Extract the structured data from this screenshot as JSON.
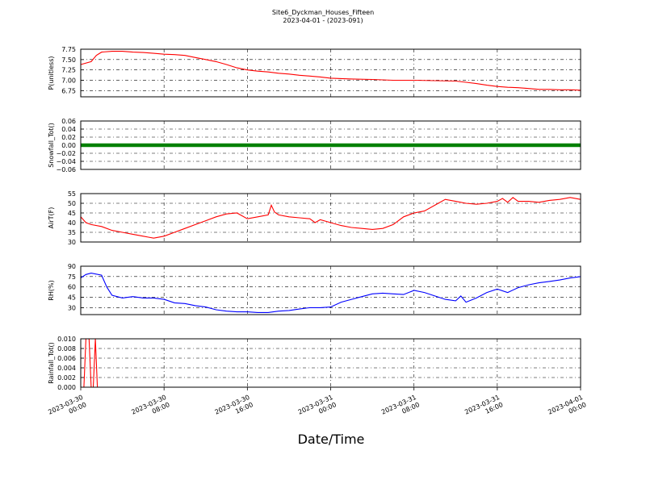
{
  "figure": {
    "title": "Site6_Dyckman_Houses_Fifteen",
    "subtitle": "2023-04-01 - (2023-091)",
    "xlabel": "Date/Time",
    "x_ticks": [
      {
        "hour": 0,
        "line1": "2023-03-30",
        "line2": "00:00"
      },
      {
        "hour": 8,
        "line1": "2023-03-30",
        "line2": "08:00"
      },
      {
        "hour": 16,
        "line1": "2023-03-30",
        "line2": "16:00"
      },
      {
        "hour": 24,
        "line1": "2023-03-31",
        "line2": "00:00"
      },
      {
        "hour": 32,
        "line1": "2023-03-31",
        "line2": "08:00"
      },
      {
        "hour": 40,
        "line1": "2023-03-31",
        "line2": "16:00"
      },
      {
        "hour": 48,
        "line1": "2023-04-01",
        "line2": "00:00"
      }
    ]
  },
  "chart_data": [
    {
      "type": "line",
      "ylabel": "P(unitless)",
      "ylim": [
        6.6,
        7.75
      ],
      "yticks": [
        "6.75",
        "7.00",
        "7.25",
        "7.50",
        "7.75"
      ],
      "ytick_values": [
        6.75,
        7.0,
        7.25,
        7.5,
        7.75
      ],
      "color": "#ff0000",
      "grid": true,
      "series": [
        {
          "x_hours": [
            0,
            1,
            1.5,
            2,
            3,
            4,
            5,
            6,
            7,
            8,
            9,
            10,
            11,
            12,
            13,
            14,
            15,
            16,
            17,
            18,
            19,
            20,
            21,
            22,
            23,
            24,
            26,
            28,
            30,
            32,
            34,
            36,
            37,
            38,
            39,
            40,
            41,
            42,
            43,
            44,
            45,
            46,
            47,
            48
          ],
          "values": [
            7.38,
            7.45,
            7.6,
            7.68,
            7.7,
            7.7,
            7.68,
            7.67,
            7.65,
            7.63,
            7.62,
            7.6,
            7.55,
            7.5,
            7.45,
            7.38,
            7.3,
            7.25,
            7.22,
            7.2,
            7.17,
            7.15,
            7.12,
            7.1,
            7.08,
            7.05,
            7.03,
            7.02,
            7.0,
            7.0,
            6.99,
            6.98,
            6.95,
            6.92,
            6.88,
            6.85,
            6.83,
            6.82,
            6.8,
            6.78,
            6.78,
            6.77,
            6.77,
            6.76
          ]
        }
      ]
    },
    {
      "type": "scatter",
      "ylabel": "Snowfall_Tot()",
      "ylim": [
        -0.06,
        0.06
      ],
      "yticks": [
        "0.06",
        "0.04",
        "0.02",
        "0.00",
        "−0.02",
        "−0.04",
        "−0.06"
      ],
      "ytick_values": [
        0.06,
        0.04,
        0.02,
        0.0,
        -0.02,
        -0.04,
        -0.06
      ],
      "color": "#008000",
      "grid": true,
      "series": [
        {
          "x_hours": [
            0,
            48
          ],
          "values": [
            0.0,
            0.0
          ],
          "note_constant": 0.0
        }
      ]
    },
    {
      "type": "line",
      "ylabel": "AirT(F)",
      "ylim": [
        30,
        55
      ],
      "yticks": [
        "30",
        "35",
        "40",
        "45",
        "50",
        "55"
      ],
      "ytick_values": [
        30,
        35,
        40,
        45,
        50,
        55
      ],
      "color": "#ff0000",
      "grid": true,
      "series": [
        {
          "x_hours": [
            0,
            0.5,
            1,
            2,
            3,
            4,
            5,
            6,
            6.5,
            7,
            8,
            9,
            10,
            11,
            12,
            13,
            14,
            15,
            16,
            17,
            18,
            18.3,
            18.6,
            19,
            20,
            21,
            22,
            22.5,
            23,
            24,
            25,
            26,
            27,
            28,
            29,
            30,
            31,
            32,
            33,
            34,
            35,
            36,
            37,
            38,
            39,
            40,
            40.5,
            41,
            41.5,
            42,
            43,
            44,
            45,
            46,
            47,
            48
          ],
          "values": [
            43,
            40,
            39,
            38,
            36,
            35,
            34,
            33,
            32.5,
            32,
            33,
            35,
            37,
            39,
            41,
            43,
            44.5,
            45,
            42,
            43,
            44,
            49,
            45.5,
            44,
            43,
            42.5,
            42,
            40,
            41.5,
            40,
            38.5,
            37.5,
            37,
            36.5,
            37,
            39,
            43,
            45,
            46,
            49,
            52,
            51,
            50,
            49.5,
            50,
            51,
            52.5,
            50.5,
            53,
            51,
            51,
            50.5,
            51.5,
            52,
            53,
            52
          ]
        }
      ]
    },
    {
      "type": "line",
      "ylabel": "RH(%)",
      "ylim": [
        20,
        90
      ],
      "yticks": [
        "30",
        "45",
        "60",
        "75",
        "90"
      ],
      "ytick_values": [
        30,
        45,
        60,
        75,
        90
      ],
      "color": "#0000ff",
      "grid": true,
      "series": [
        {
          "x_hours": [
            0,
            0.5,
            1,
            2,
            2.5,
            3,
            4,
            5,
            6,
            7,
            8,
            9,
            10,
            11,
            12,
            13,
            14,
            15,
            16,
            17,
            18,
            19,
            20,
            21,
            22,
            23,
            24,
            25,
            26,
            27,
            28,
            29,
            30,
            31,
            32,
            33,
            34,
            35,
            36,
            36.5,
            37,
            38,
            39,
            40,
            41,
            42,
            43,
            44,
            45,
            46,
            47,
            48
          ],
          "values": [
            73,
            78,
            80,
            77,
            60,
            48,
            44,
            46,
            44,
            44,
            42,
            37,
            36,
            33,
            31,
            27,
            25,
            24,
            24,
            23,
            23,
            25,
            26,
            28,
            30,
            30,
            31,
            38,
            42,
            46,
            50,
            51,
            50,
            49,
            55,
            52,
            47,
            42,
            40,
            47,
            38,
            44,
            52,
            57,
            52,
            59,
            63,
            66,
            68,
            70,
            73,
            75
          ]
        }
      ]
    },
    {
      "type": "line",
      "ylabel": "Rainfall_Tot()",
      "ylim": [
        0,
        0.01
      ],
      "yticks": [
        "0.000",
        "0.002",
        "0.004",
        "0.006",
        "0.008",
        "0.010"
      ],
      "ytick_values": [
        0.0,
        0.002,
        0.004,
        0.006,
        0.008,
        0.01
      ],
      "color": "#ff0000",
      "grid": true,
      "series": [
        {
          "x_hours": [
            0,
            0.3,
            0.5,
            0.8,
            1.0,
            1.2,
            1.4,
            1.6,
            48
          ],
          "values": [
            0,
            0,
            0.01,
            0.01,
            0,
            0,
            0.01,
            0,
            0
          ]
        }
      ]
    }
  ]
}
